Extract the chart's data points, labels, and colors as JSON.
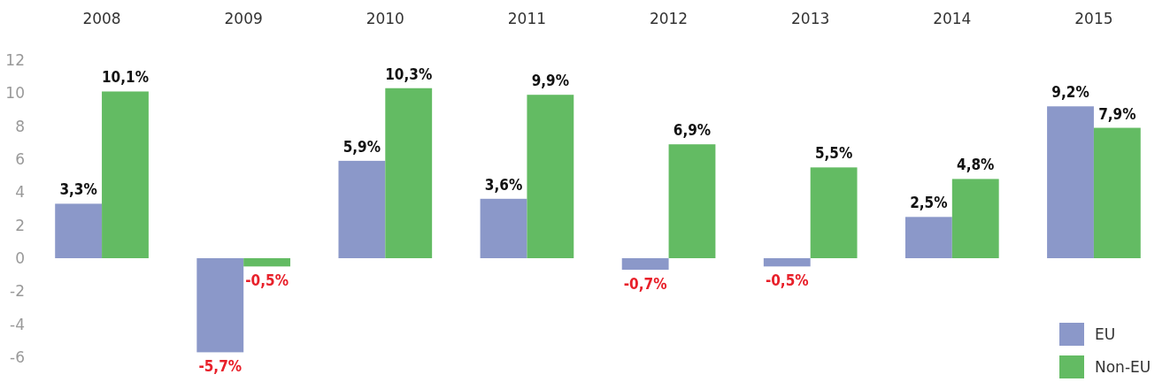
{
  "chart_data": {
    "type": "bar",
    "categories": [
      "2008",
      "2009",
      "2010",
      "2011",
      "2012",
      "2013",
      "2014",
      "2015"
    ],
    "series": [
      {
        "name": "EU",
        "color": "#8b98c9",
        "values": [
          3.3,
          -5.7,
          5.9,
          3.6,
          -0.7,
          -0.5,
          2.5,
          9.2
        ],
        "value_labels": [
          "3,3%",
          "-5,7%",
          "5,9%",
          "3,6%",
          "-0,7%",
          "-0,5%",
          "2,5%",
          "9,2%"
        ]
      },
      {
        "name": "Non-EU",
        "color": "#63bb63",
        "values": [
          10.1,
          -0.5,
          10.3,
          9.9,
          6.9,
          5.5,
          4.8,
          7.9
        ],
        "value_labels": [
          "10,1%",
          "-0,5%",
          "10,3%",
          "9,9%",
          "6,9%",
          "5,5%",
          "4,8%",
          "7,9%"
        ]
      }
    ],
    "ylim": [
      -6,
      12
    ],
    "yticks": [
      {
        "value": -6,
        "label": "-6"
      },
      {
        "value": -4,
        "label": "-4"
      },
      {
        "value": -2,
        "label": "-2"
      },
      0,
      2,
      4,
      6,
      8,
      10,
      12
    ],
    "grid": false,
    "legend": "bottom right"
  }
}
